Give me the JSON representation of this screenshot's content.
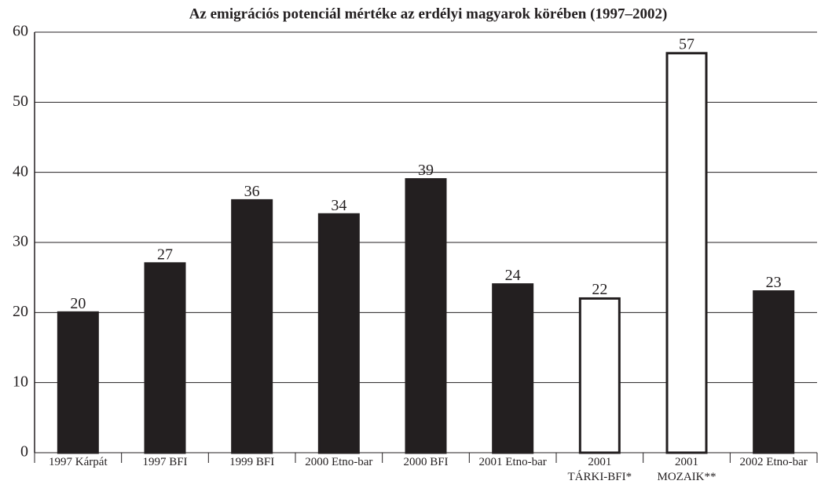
{
  "chart_data": {
    "type": "bar",
    "title": "Az emigrációs potenciál mértéke az erdélyi magyarok körében (1997–2002)",
    "categories": [
      "1997 Kárpát",
      "1997 BFI",
      "1999 BFI",
      "2000 Etno-bar",
      "2000 BFI",
      "2001 Etno-bar",
      "2001\nTÁRKI-BFI*",
      "2001\nMOZAIK**",
      "2002 Etno-bar"
    ],
    "values": [
      20,
      27,
      36,
      34,
      39,
      24,
      22,
      57,
      23
    ],
    "colors": [
      "#231f20",
      "#231f20",
      "#231f20",
      "#231f20",
      "#231f20",
      "#231f20",
      "#ffffff",
      "#ffffff",
      "#231f20"
    ],
    "ylim": [
      0,
      60
    ],
    "yticks": [
      0,
      10,
      20,
      30,
      40,
      50,
      60
    ],
    "grid": true
  }
}
